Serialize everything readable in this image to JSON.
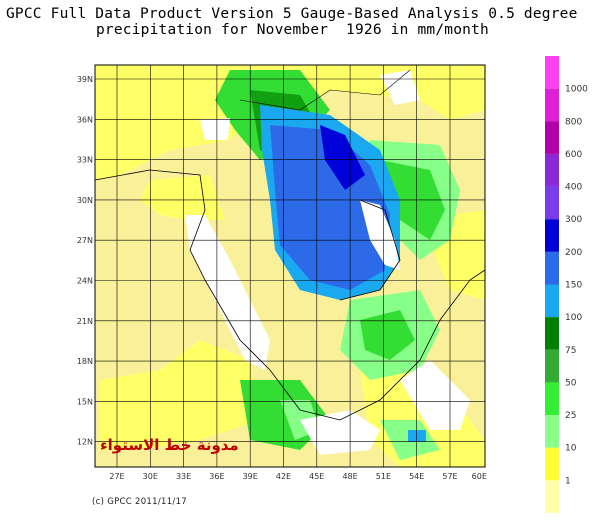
{
  "title": {
    "line1": "GPCC Full Data Product Version 5 Gauge-Based Analysis 0.5 degree",
    "line2": "precipitation for November  1926 in mm/month"
  },
  "credit": "(c) GPCC 2011/11/17",
  "watermark": "مدونة خط الاستواء",
  "lat_labels": [
    "39N",
    "36N",
    "33N",
    "30N",
    "27N",
    "24N",
    "21N",
    "18N",
    "15N",
    "12N"
  ],
  "lon_labels": [
    "27E",
    "30E",
    "33E",
    "36E",
    "39E",
    "42E",
    "45E",
    "48E",
    "51E",
    "54E",
    "57E",
    "60E"
  ],
  "legend": {
    "labels": [
      "1000",
      "800",
      "600",
      "400",
      "300",
      "200",
      "150",
      "100",
      "75",
      "50",
      "25",
      "10",
      "1"
    ],
    "colors": [
      "#ff3ff0",
      "#e020d8",
      "#b000a8",
      "#8a2ad6",
      "#7a3cea",
      "#0000d8",
      "#2c6ae8",
      "#1aa8f0",
      "#008000",
      "#33aa33",
      "#33ee33",
      "#88ff88",
      "#ffff33",
      "#ffffaa"
    ]
  },
  "colors": {
    "background_land": "#fbf09a",
    "light_yellow": "#ffff66",
    "white": "#ffffff",
    "light_green": "#88ff88",
    "green": "#33dd33",
    "dark_green": "#10a010",
    "light_blue": "#1aa8f0",
    "blue": "#2c6ae8",
    "dark_blue": "#0000d8"
  }
}
